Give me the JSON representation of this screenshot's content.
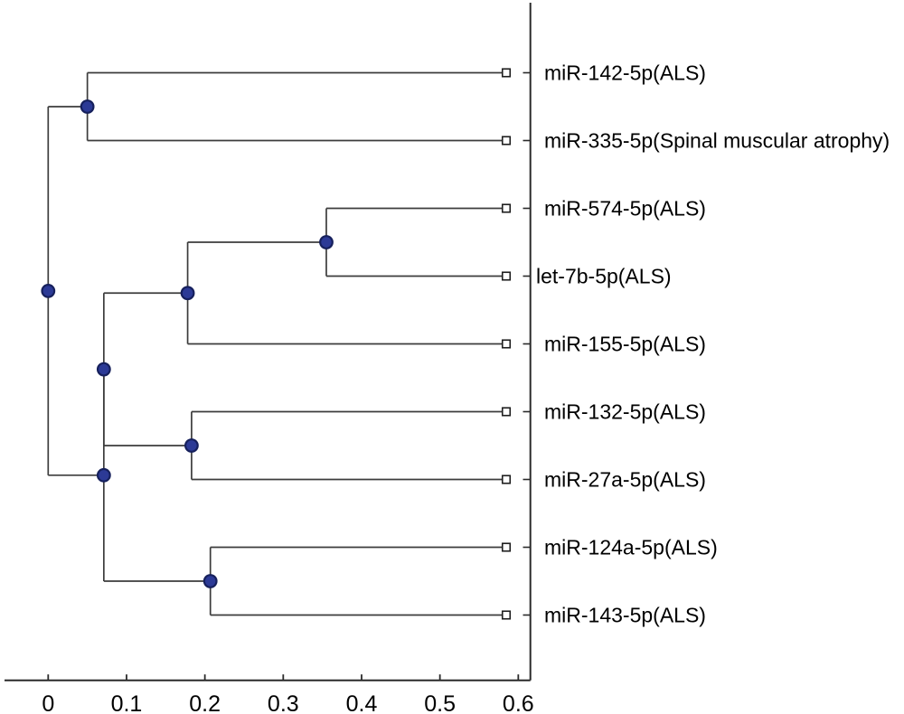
{
  "chart_data": {
    "type": "dendrogram",
    "orientation": "horizontal",
    "title": "",
    "axis": {
      "position": "bottom",
      "range": [
        0,
        0.6
      ],
      "ticks": [
        0,
        0.1,
        0.2,
        0.3,
        0.4,
        0.5,
        0.6
      ],
      "tick_labels": [
        "0",
        "0.1",
        "0.2",
        "0.3",
        "0.4",
        "0.5",
        "0.6"
      ],
      "grid": false
    },
    "leaves": [
      "miR-142-5p(ALS)",
      "miR-335-5p(Spinal muscular atrophy)",
      "miR-574-5p(ALS)",
      "let-7b-5p(ALS)",
      "miR-155-5p(ALS)",
      "miR-132-5p(ALS)",
      "miR-27a-5p(ALS)",
      "miR-124a-5p(ALS)",
      "miR-143-5p(ALS)"
    ],
    "merges": [
      {
        "id": "A",
        "children": [
          "leaf:0",
          "leaf:1"
        ],
        "height": 0.05
      },
      {
        "id": "B",
        "children": [
          "leaf:2",
          "leaf:3"
        ],
        "height": 0.355
      },
      {
        "id": "C",
        "children": [
          "B",
          "leaf:4"
        ],
        "height": 0.178
      },
      {
        "id": "D",
        "children": [
          "leaf:5",
          "leaf:6"
        ],
        "height": 0.183
      },
      {
        "id": "E",
        "children": [
          "leaf:7",
          "leaf:8"
        ],
        "height": 0.207
      },
      {
        "id": "F",
        "children": [
          "C",
          "D"
        ],
        "height": 0.071
      },
      {
        "id": "G",
        "children": [
          "F",
          "E"
        ],
        "height": 0.071
      },
      {
        "id": "root",
        "children": [
          "A",
          "G"
        ],
        "height": 0.0
      }
    ],
    "colors": {
      "line": "#3c3c3c",
      "axis_line": "#2a2a2a",
      "node_fill": "#2c3a96",
      "node_stroke": "#16205c",
      "leaf_marker_fill": "#ffffff",
      "leaf_marker_stroke": "#1e1e1e",
      "text": "#000000"
    },
    "markers": {
      "internal_node": "filled-circle",
      "leaf_node": "open-square"
    }
  }
}
